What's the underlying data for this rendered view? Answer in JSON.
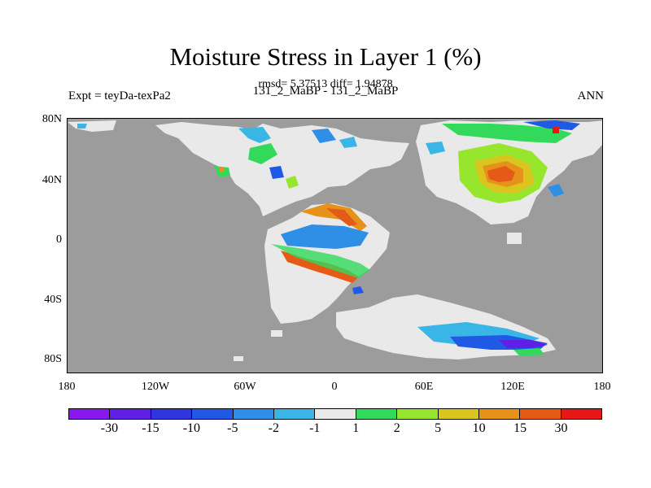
{
  "figure": {
    "title": "Moisture Stress in Layer 1 (%)",
    "stats": "rmsd= 5.37513 diff= 1.94878",
    "left_label": "Expt = teyDa-texPa2",
    "center_label": "131_2_MaBP - 131_2_MaBP",
    "right_label": "ANN"
  },
  "axes": {
    "y_ticks": [
      "80N",
      "40N",
      "0",
      "40S",
      "80S"
    ],
    "x_ticks": [
      "180",
      "120W",
      "60W",
      "0",
      "60E",
      "120E",
      "180"
    ]
  },
  "colorbar": {
    "labels": [
      "-30",
      "-15",
      "-10",
      "-5",
      "-2",
      "-1",
      "1",
      "2",
      "5",
      "10",
      "15",
      "30"
    ],
    "colors": [
      "#8a17f0",
      "#5f1fe6",
      "#2f36e0",
      "#1f59e6",
      "#2f8fe6",
      "#39b6e6",
      "#e9e9e9",
      "#32d95a",
      "#97e62e",
      "#d9c51d",
      "#e6921a",
      "#e45a16",
      "#e61717"
    ]
  }
}
